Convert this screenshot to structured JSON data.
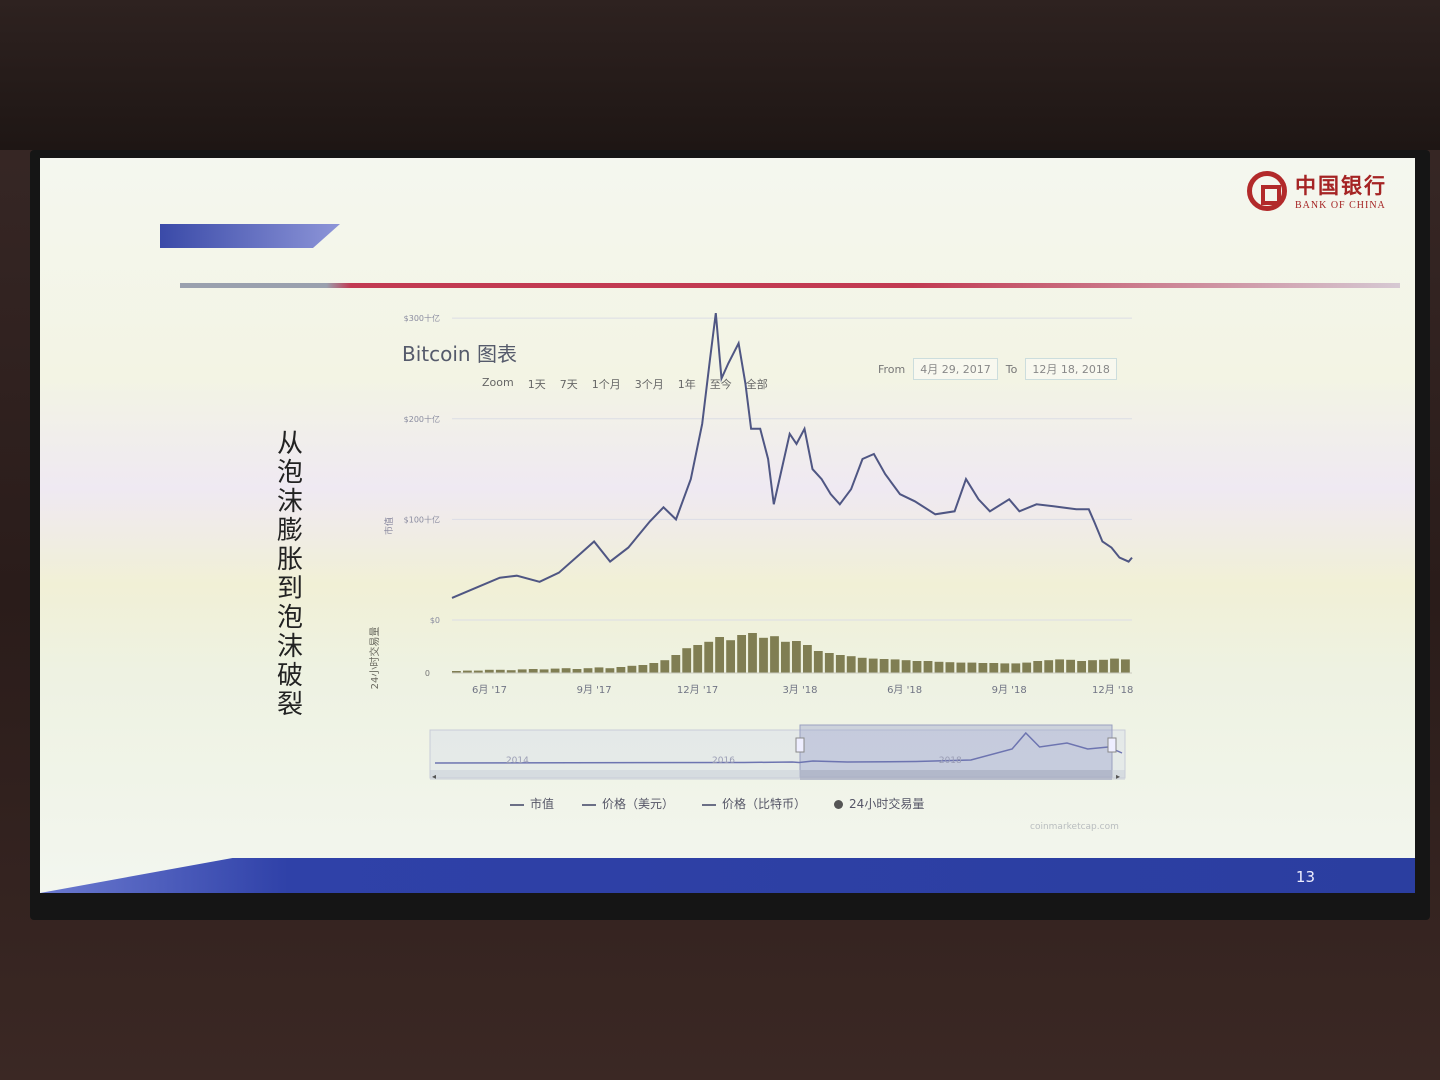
{
  "slide": {
    "vertical_title": "从泡沫膨胀到泡沫破裂",
    "page_number": "13",
    "logo": {
      "cn": "中国银行",
      "en": "BANK OF CHINA"
    }
  },
  "controls": {
    "zoom_label": "Zoom",
    "zoom_options": [
      "1天",
      "7天",
      "1个月",
      "3个月",
      "1年",
      "至今",
      "全部"
    ],
    "from_label": "From",
    "from_date": "4月 29, 2017",
    "to_label": "To",
    "to_date": "12月 18, 2018"
  },
  "legend": [
    "市值",
    "价格（美元）",
    "价格（比特币）",
    "24小时交易量"
  ],
  "credit": "coinmarketcap.com",
  "colors": {
    "price_line": "#4f5683",
    "volume_bar": "#6c6a3a",
    "brand_red": "#b22a2a",
    "band_blue": "#2b3ea0"
  },
  "chart_data": [
    {
      "type": "line",
      "title": "Bitcoin 图表",
      "ylabel": "市值",
      "yticks": [
        "$0",
        "$100十亿",
        "$200十亿",
        "$300十亿"
      ],
      "ylim": [
        0,
        320
      ],
      "xticks": [
        "6月 '17",
        "9月 '17",
        "12月 '17",
        "3月 '18",
        "6月 '18",
        "9月 '18",
        "12月 '18"
      ],
      "xlim": [
        "2017-04-29",
        "2018-12-18"
      ],
      "series": [
        {
          "name": "市值",
          "points": [
            [
              "2017-04-29",
              22
            ],
            [
              "2017-05-20",
              32
            ],
            [
              "2017-06-10",
              42
            ],
            [
              "2017-06-25",
              44
            ],
            [
              "2017-07-15",
              38
            ],
            [
              "2017-08-01",
              47
            ],
            [
              "2017-08-20",
              66
            ],
            [
              "2017-09-01",
              78
            ],
            [
              "2017-09-15",
              58
            ],
            [
              "2017-10-01",
              72
            ],
            [
              "2017-10-20",
              98
            ],
            [
              "2017-11-01",
              112
            ],
            [
              "2017-11-12",
              100
            ],
            [
              "2017-11-25",
              140
            ],
            [
              "2017-12-05",
              195
            ],
            [
              "2017-12-12",
              260
            ],
            [
              "2017-12-17",
              305
            ],
            [
              "2017-12-22",
              240
            ],
            [
              "2017-12-28",
              255
            ],
            [
              "2018-01-06",
              275
            ],
            [
              "2018-01-12",
              235
            ],
            [
              "2018-01-17",
              190
            ],
            [
              "2018-01-25",
              190
            ],
            [
              "2018-02-01",
              160
            ],
            [
              "2018-02-06",
              115
            ],
            [
              "2018-02-12",
              145
            ],
            [
              "2018-02-20",
              185
            ],
            [
              "2018-02-26",
              175
            ],
            [
              "2018-03-05",
              190
            ],
            [
              "2018-03-12",
              150
            ],
            [
              "2018-03-20",
              140
            ],
            [
              "2018-03-28",
              125
            ],
            [
              "2018-04-05",
              115
            ],
            [
              "2018-04-15",
              130
            ],
            [
              "2018-04-25",
              160
            ],
            [
              "2018-05-05",
              165
            ],
            [
              "2018-05-15",
              145
            ],
            [
              "2018-05-28",
              125
            ],
            [
              "2018-06-10",
              118
            ],
            [
              "2018-06-28",
              105
            ],
            [
              "2018-07-15",
              108
            ],
            [
              "2018-07-25",
              140
            ],
            [
              "2018-08-05",
              120
            ],
            [
              "2018-08-15",
              108
            ],
            [
              "2018-09-01",
              120
            ],
            [
              "2018-09-10",
              108
            ],
            [
              "2018-09-25",
              115
            ],
            [
              "2018-10-10",
              113
            ],
            [
              "2018-10-30",
              110
            ],
            [
              "2018-11-10",
              110
            ],
            [
              "2018-11-15",
              97
            ],
            [
              "2018-11-22",
              78
            ],
            [
              "2018-11-30",
              72
            ],
            [
              "2018-12-07",
              62
            ],
            [
              "2018-12-15",
              58
            ],
            [
              "2018-12-18",
              62
            ]
          ]
        }
      ]
    },
    {
      "type": "bar",
      "ylabel": "24小时交易量",
      "yticks": [
        "0"
      ],
      "series": [
        {
          "name": "24小时交易量",
          "relative_levels": [
            0.05,
            0.06,
            0.06,
            0.08,
            0.08,
            0.07,
            0.09,
            0.1,
            0.09,
            0.11,
            0.12,
            0.1,
            0.12,
            0.14,
            0.12,
            0.15,
            0.18,
            0.2,
            0.25,
            0.32,
            0.45,
            0.62,
            0.7,
            0.78,
            0.9,
            0.82,
            0.95,
            1.0,
            0.88,
            0.92,
            0.78,
            0.8,
            0.7,
            0.55,
            0.5,
            0.45,
            0.42,
            0.38,
            0.36,
            0.35,
            0.34,
            0.32,
            0.3,
            0.3,
            0.28,
            0.27,
            0.26,
            0.26,
            0.25,
            0.25,
            0.24,
            0.24,
            0.26,
            0.3,
            0.32,
            0.34,
            0.33,
            0.3,
            0.32,
            0.33,
            0.36,
            0.34
          ]
        }
      ]
    },
    {
      "type": "line",
      "xticks": [
        "2014",
        "2016",
        "2018"
      ]
    }
  ]
}
